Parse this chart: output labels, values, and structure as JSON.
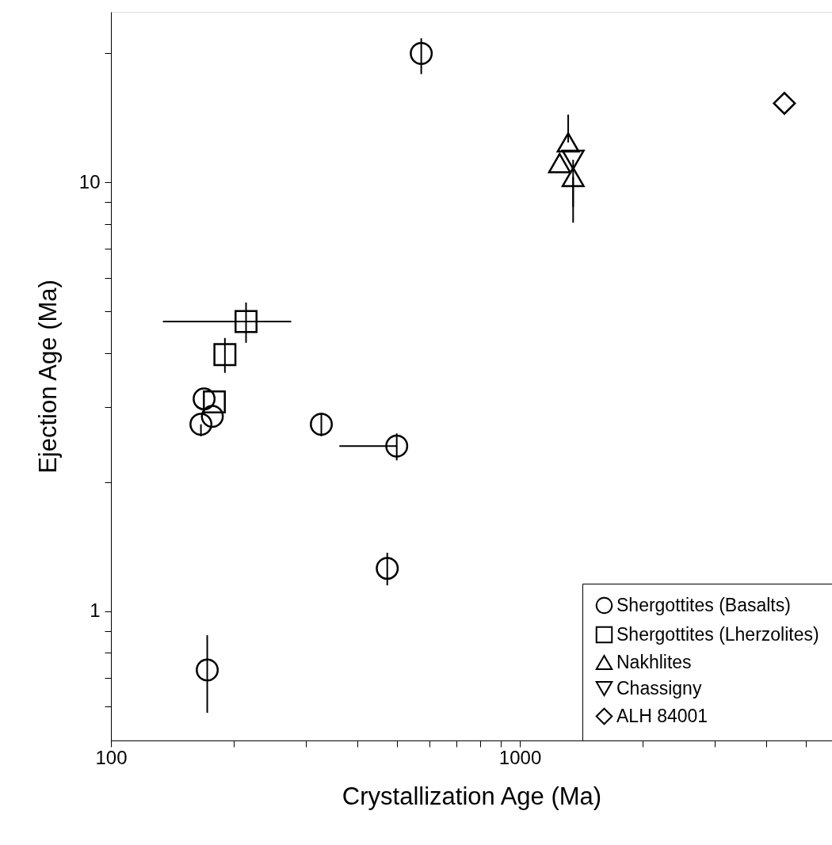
{
  "chart_data": {
    "type": "scatter",
    "xlabel": "Crystallization Age (Ma)",
    "ylabel": "Ejection Age (Ma)",
    "log": "xy",
    "grid": false,
    "legend": "bottom right",
    "xlim": [
      100,
      5800
    ],
    "ylim": [
      0.5,
      25
    ],
    "xticks": [
      100,
      {
        "value": 200,
        "label": null
      },
      {
        "value": 300,
        "label": null
      },
      {
        "value": 400,
        "label": null
      },
      {
        "value": 500,
        "label": null
      },
      {
        "value": 600,
        "label": null
      },
      {
        "value": 700,
        "label": null
      },
      {
        "value": 800,
        "label": null
      },
      {
        "value": 900,
        "label": null
      },
      1000,
      {
        "value": 2000,
        "label": null
      },
      {
        "value": 3000,
        "label": null
      },
      {
        "value": 4000,
        "label": null
      },
      {
        "value": 5000,
        "label": null
      }
    ],
    "yticks": [
      {
        "value": 0.6,
        "label": null
      },
      {
        "value": 0.7,
        "label": null
      },
      {
        "value": 0.8,
        "label": null
      },
      {
        "value": 0.9,
        "label": null
      },
      1,
      {
        "value": 2,
        "label": null
      },
      {
        "value": 3,
        "label": null
      },
      {
        "value": 4,
        "label": null
      },
      {
        "value": 5,
        "label": null
      },
      {
        "value": 6,
        "label": null
      },
      {
        "value": 7,
        "label": null
      },
      {
        "value": 8,
        "label": null
      },
      {
        "value": 9,
        "label": null
      },
      10,
      {
        "value": 20,
        "label": null
      }
    ],
    "series": [
      {
        "name": "Shergottites (Basalts)",
        "color": "#000000",
        "marker": "circle",
        "x": [
          574,
          166,
          169,
          177,
          327,
          500,
          474,
          172
        ],
        "values": [
          20.0,
          2.73,
          3.13,
          2.85,
          2.73,
          2.43,
          1.26,
          0.73
        ],
        "errors": [
          [
            17.9,
            21.7
          ],
          [
            2.56,
            2.73
          ],
          null,
          null,
          [
            2.56,
            2.9
          ],
          [
            2.25,
            2.6
          ],
          [
            1.15,
            1.37
          ],
          [
            0.58,
            0.88
          ]
        ],
        "xerrors": [
          null,
          null,
          null,
          null,
          null,
          [
            362,
            500
          ],
          null,
          null
        ]
      },
      {
        "name": "Shergottites (Lherzolites)",
        "color": "#000000",
        "marker": "square",
        "x": [
          179,
          190,
          214
        ],
        "values": [
          3.08,
          3.97,
          4.74
        ],
        "errors": [
          null,
          [
            3.6,
            4.34
          ],
          [
            4.23,
            5.25
          ]
        ],
        "xerrors": [
          null,
          null,
          [
            134,
            276
          ]
        ]
      },
      {
        "name": "Nakhlites",
        "color": "#000000",
        "marker": "triangle",
        "x": [
          1313,
          1251,
          1350
        ],
        "values": [
          12.4,
          11.1,
          10.3
        ],
        "errors": [
          [
            12.4,
            14.4
          ],
          null,
          [
            8.77,
            10.3
          ]
        ]
      },
      {
        "name": "Chassigny",
        "color": "#000000",
        "marker": "triangle-down",
        "x": [
          1350
        ],
        "values": [
          11.3
        ],
        "errors": [
          [
            8.06,
            11.3
          ]
        ]
      },
      {
        "name": "ALH 84001",
        "color": "#000000",
        "marker": "diamond",
        "x": [
          4436
        ],
        "values": [
          15.3
        ]
      }
    ]
  }
}
